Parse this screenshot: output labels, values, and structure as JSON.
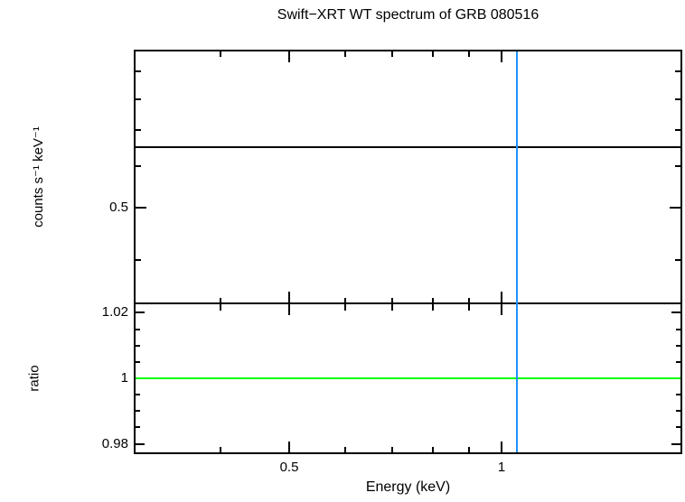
{
  "figure": {
    "title": "Swift−XRT WT spectrum of GRB 080516",
    "xlabel": "Energy (keV)",
    "top_panel": {
      "ylabel": "counts s⁻¹ keV⁻¹"
    },
    "bottom_panel": {
      "ylabel": "ratio"
    }
  },
  "colors": {
    "frame": "#000000",
    "model_line": "#000000",
    "unity_ratio_line": "#00ff00",
    "energy_cursor_line": "#1e90ff"
  },
  "chart_data": [
    {
      "type": "line",
      "panel": "spectrum",
      "title": "Swift−XRT WT spectrum of GRB 080516",
      "xlabel": "Energy (keV)",
      "ylabel": "counts s⁻¹ keV⁻¹",
      "x_scale": "log",
      "y_scale": "log",
      "xlim": [
        0.3,
        1.8
      ],
      "ylim": [
        0.33,
        0.99
      ],
      "x_major_ticks": [
        0.5,
        1
      ],
      "x_minor_ticks": [
        0.4,
        0.6,
        0.7,
        0.8,
        0.9
      ],
      "y_major_ticks": [
        0.5
      ],
      "y_minor_ticks": [
        0.4,
        0.6,
        0.7,
        0.8,
        0.9
      ],
      "grid": false,
      "legend": "none",
      "series": [
        {
          "name": "model",
          "kind": "hline",
          "y": 0.65,
          "color": "#000000"
        },
        {
          "name": "energy-cursor",
          "kind": "vline",
          "x": 1.05,
          "color": "#1e90ff"
        }
      ]
    },
    {
      "type": "line",
      "panel": "ratio",
      "xlabel": "Energy (keV)",
      "ylabel": "ratio",
      "x_scale": "log",
      "y_scale": "linear",
      "xlim": [
        0.3,
        1.8
      ],
      "ylim": [
        0.9765,
        1.0225
      ],
      "x_major_ticks": [
        0.5,
        1
      ],
      "x_minor_ticks": [
        0.4,
        0.6,
        0.7,
        0.8,
        0.9
      ],
      "y_major_ticks": [
        1.02,
        1,
        0.98
      ],
      "y_minor_ticks": [
        1.015,
        1.01,
        1.005,
        0.995,
        0.99,
        0.985
      ],
      "grid": false,
      "legend": "none",
      "series": [
        {
          "name": "unity-ratio",
          "kind": "hline",
          "y": 1,
          "color": "#00ff00"
        },
        {
          "name": "energy-cursor",
          "kind": "vline",
          "x": 1.05,
          "color": "#1e90ff"
        }
      ]
    }
  ]
}
